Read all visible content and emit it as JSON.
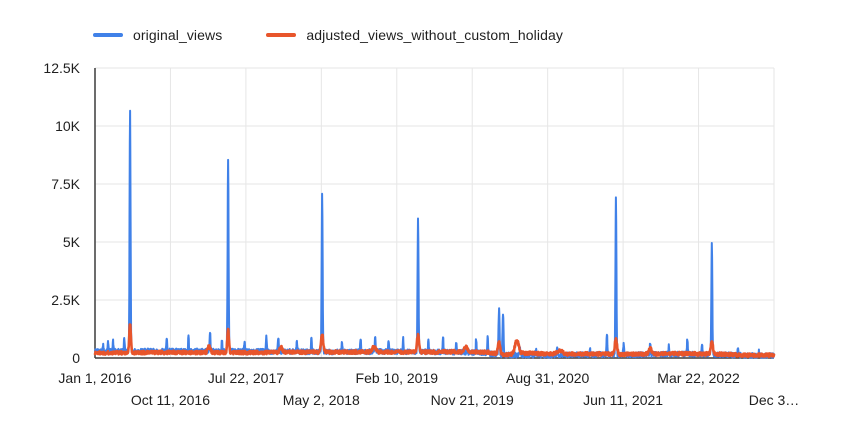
{
  "colors": {
    "background": "#ffffff",
    "grid": "#e6e6e6",
    "axis": "#3c3c3c",
    "text": "#1f1f1f",
    "series_blue": "#4081e8",
    "series_orange": "#e8552b"
  },
  "legend": {
    "items": [
      {
        "label": "original_views",
        "color": "#4081e8"
      },
      {
        "label": "adjusted_views_without_custom_holiday",
        "color": "#e8552b"
      }
    ]
  },
  "chart_data": {
    "type": "line",
    "title": "",
    "xlabel": "",
    "ylabel": "",
    "grid": true,
    "legend_position": "top",
    "ylim": [
      0,
      12500
    ],
    "x_domain_days": [
      0,
      2556
    ],
    "y_ticks": [
      {
        "value": 0,
        "label": "0"
      },
      {
        "value": 2500,
        "label": "2.5K"
      },
      {
        "value": 5000,
        "label": "5K"
      },
      {
        "value": 7500,
        "label": "7.5K"
      },
      {
        "value": 10000,
        "label": "10K"
      },
      {
        "value": 12500,
        "label": "12.5K"
      }
    ],
    "x_ticks": [
      {
        "day": 0,
        "label": "Jan 1, 2016",
        "row": 1
      },
      {
        "day": 284,
        "label": "Oct 11, 2016",
        "row": 2
      },
      {
        "day": 568,
        "label": "Jul 22, 2017",
        "row": 1
      },
      {
        "day": 852,
        "label": "May 2, 2018",
        "row": 2
      },
      {
        "day": 1136,
        "label": "Feb 10, 2019",
        "row": 1
      },
      {
        "day": 1420,
        "label": "Nov 21, 2019",
        "row": 2
      },
      {
        "day": 1704,
        "label": "Aug 31, 2020",
        "row": 1
      },
      {
        "day": 1988,
        "label": "Jun 11, 2021",
        "row": 2
      },
      {
        "day": 2272,
        "label": "Mar 22, 2022",
        "row": 1
      },
      {
        "day": 2556,
        "label": "Dec 3…",
        "row": 2
      }
    ],
    "series": [
      {
        "name": "original_views",
        "color": "#4081e8",
        "stroke_width": 2,
        "seed": 42,
        "noise": 110,
        "baseline": [
          [
            0,
            300
          ],
          [
            120,
            280
          ],
          [
            140,
            300
          ],
          [
            400,
            300
          ],
          [
            700,
            280
          ],
          [
            900,
            260
          ],
          [
            1100,
            280
          ],
          [
            1300,
            260
          ],
          [
            1450,
            230
          ],
          [
            1530,
            130
          ],
          [
            1700,
            120
          ],
          [
            1900,
            150
          ],
          [
            2000,
            140
          ],
          [
            2200,
            170
          ],
          [
            2340,
            150
          ],
          [
            2450,
            110
          ],
          [
            2556,
            100
          ]
        ],
        "spikes": [
          [
            132,
            10700,
            1.8
          ],
          [
            501,
            8450,
            1.8
          ],
          [
            855,
            7050,
            1.8
          ],
          [
            1216,
            6000,
            1.8
          ],
          [
            1521,
            2080,
            2
          ],
          [
            1536,
            1900,
            2
          ],
          [
            1961,
            6850,
            1.8
          ],
          [
            2322,
            4900,
            1.8
          ],
          [
            30,
            600,
            1.5
          ],
          [
            49,
            780,
            1.5
          ],
          [
            68,
            700,
            1.5
          ],
          [
            110,
            900,
            1.5
          ],
          [
            270,
            820,
            1.5
          ],
          [
            352,
            900,
            1.5
          ],
          [
            433,
            1150,
            1.5
          ],
          [
            478,
            800,
            1.5
          ],
          [
            563,
            680,
            1.5
          ],
          [
            645,
            980,
            1.5
          ],
          [
            690,
            910,
            1.5
          ],
          [
            760,
            720,
            1.5
          ],
          [
            815,
            860,
            1.5
          ],
          [
            930,
            700,
            1.5
          ],
          [
            1000,
            820,
            1.5
          ],
          [
            1055,
            930,
            1.5
          ],
          [
            1105,
            680,
            1.5
          ],
          [
            1160,
            800,
            1.5
          ],
          [
            1255,
            720,
            1.5
          ],
          [
            1310,
            900,
            1.5
          ],
          [
            1360,
            640,
            1.5
          ],
          [
            1435,
            820,
            1.5
          ],
          [
            1478,
            950,
            1.5
          ],
          [
            1600,
            450,
            1.5
          ],
          [
            1660,
            380,
            1.5
          ],
          [
            1740,
            420,
            1.5
          ],
          [
            1863,
            420,
            1.5
          ],
          [
            1927,
            1080,
            1.5
          ],
          [
            1990,
            560,
            1.5
          ],
          [
            2090,
            640,
            1.5
          ],
          [
            2160,
            520,
            1.5
          ],
          [
            2230,
            830,
            1.5
          ],
          [
            2285,
            620,
            1.5
          ],
          [
            2420,
            380,
            1.5
          ],
          [
            2500,
            300,
            1.5
          ]
        ]
      },
      {
        "name": "adjusted_views_without_custom_holiday",
        "color": "#e8552b",
        "stroke_width": 2.6,
        "seed": 1337,
        "noise": 75,
        "baseline": [
          [
            0,
            220
          ],
          [
            300,
            240
          ],
          [
            500,
            230
          ],
          [
            800,
            250
          ],
          [
            1000,
            260
          ],
          [
            1200,
            250
          ],
          [
            1350,
            270
          ],
          [
            1470,
            260
          ],
          [
            1545,
            140
          ],
          [
            1620,
            210
          ],
          [
            1700,
            170
          ],
          [
            1900,
            180
          ],
          [
            2000,
            160
          ],
          [
            2200,
            190
          ],
          [
            2330,
            170
          ],
          [
            2450,
            130
          ],
          [
            2556,
            120
          ]
        ],
        "spikes": [
          [
            132,
            1450,
            3
          ],
          [
            501,
            1260,
            3
          ],
          [
            855,
            1020,
            4
          ],
          [
            1216,
            960,
            4
          ],
          [
            1521,
            700,
            4
          ],
          [
            1588,
            780,
            7
          ],
          [
            1750,
            330,
            10
          ],
          [
            1961,
            840,
            4
          ],
          [
            2322,
            700,
            4
          ],
          [
            430,
            520,
            5
          ],
          [
            700,
            480,
            5
          ],
          [
            1050,
            500,
            6
          ],
          [
            1395,
            500,
            6
          ],
          [
            2090,
            420,
            5
          ]
        ]
      }
    ]
  }
}
